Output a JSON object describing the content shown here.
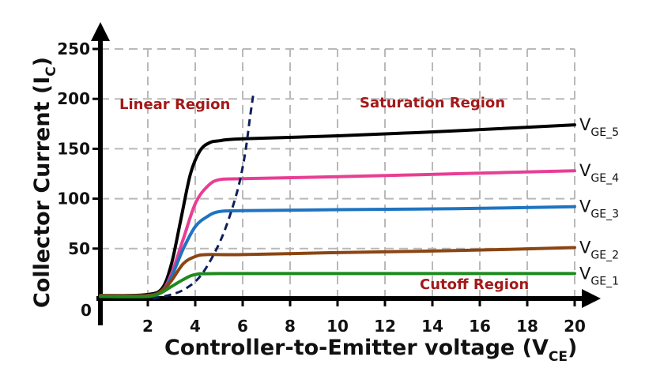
{
  "chart_data": {
    "type": "line",
    "xlabel": "Controller-to-Emitter  voltage (V",
    "xlabel_sub": "CE",
    "xlabel_end": ")",
    "ylabel": "Collector Current (I",
    "ylabel_sub": "C",
    "ylabel_end": ")",
    "origin_label": "0",
    "xlim": [
      0,
      20
    ],
    "ylim": [
      0,
      250
    ],
    "x_ticks": [
      2,
      4,
      6,
      8,
      10,
      12,
      14,
      16,
      18,
      20
    ],
    "y_ticks": [
      50,
      100,
      150,
      200,
      250
    ],
    "grid": true,
    "series": [
      {
        "name": "V",
        "sub": "GE_5",
        "color": "#000000",
        "saturation": 174,
        "knee_start": 2.6,
        "knee_end": 5.0,
        "knee_value": 158,
        "points": [
          [
            0,
            3
          ],
          [
            1,
            3
          ],
          [
            2,
            4
          ],
          [
            2.6,
            10
          ],
          [
            3,
            35
          ],
          [
            3.4,
            80
          ],
          [
            3.8,
            125
          ],
          [
            4.2,
            148
          ],
          [
            4.6,
            156
          ],
          [
            5,
            158
          ],
          [
            6,
            160
          ],
          [
            10,
            163
          ],
          [
            15,
            168
          ],
          [
            20,
            174
          ]
        ]
      },
      {
        "name": "V",
        "sub": "GE_4",
        "color": "#e83e94",
        "saturation": 128,
        "points": [
          [
            0,
            3
          ],
          [
            2,
            3
          ],
          [
            2.6,
            8
          ],
          [
            3,
            25
          ],
          [
            3.5,
            60
          ],
          [
            4,
            95
          ],
          [
            4.5,
            112
          ],
          [
            5,
            119
          ],
          [
            6,
            120
          ],
          [
            10,
            122
          ],
          [
            15,
            125
          ],
          [
            20,
            128
          ]
        ]
      },
      {
        "name": "V",
        "sub": "GE_3",
        "color": "#1f74c1",
        "saturation": 92,
        "points": [
          [
            0,
            3
          ],
          [
            2,
            3
          ],
          [
            2.6,
            8
          ],
          [
            3,
            22
          ],
          [
            3.5,
            50
          ],
          [
            4,
            72
          ],
          [
            4.5,
            82
          ],
          [
            5,
            87
          ],
          [
            6,
            88
          ],
          [
            10,
            89
          ],
          [
            15,
            90
          ],
          [
            20,
            92
          ]
        ]
      },
      {
        "name": "V",
        "sub": "GE_2",
        "color": "#8b4513",
        "saturation": 51,
        "points": [
          [
            0,
            3
          ],
          [
            2,
            3
          ],
          [
            2.6,
            8
          ],
          [
            3,
            18
          ],
          [
            3.5,
            35
          ],
          [
            4,
            42
          ],
          [
            4.5,
            44
          ],
          [
            6,
            44
          ],
          [
            10,
            46
          ],
          [
            15,
            48
          ],
          [
            20,
            51
          ]
        ]
      },
      {
        "name": "V",
        "sub": "GE_1",
        "color": "#1e8a1e",
        "saturation": 25,
        "points": [
          [
            0,
            2
          ],
          [
            2,
            2
          ],
          [
            2.5,
            5
          ],
          [
            3,
            12
          ],
          [
            3.5,
            19
          ],
          [
            4,
            24
          ],
          [
            5,
            25
          ],
          [
            10,
            25
          ],
          [
            15,
            25
          ],
          [
            20,
            25
          ]
        ]
      }
    ],
    "boundary": {
      "color": "#0d1f5c",
      "points": [
        [
          2.2,
          0
        ],
        [
          3,
          4
        ],
        [
          3.6,
          10
        ],
        [
          4.2,
          22
        ],
        [
          4.8,
          45
        ],
        [
          5.3,
          72
        ],
        [
          5.8,
          110
        ],
        [
          6.1,
          145
        ],
        [
          6.3,
          180
        ],
        [
          6.45,
          205
        ]
      ]
    },
    "annotations": {
      "linear": "Linear Region",
      "saturation": "Saturation Region",
      "cutoff": "Cutoff Region"
    }
  }
}
